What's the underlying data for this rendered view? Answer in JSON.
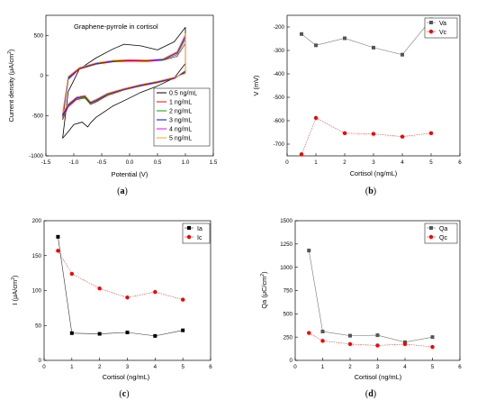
{
  "chart_data": [
    {
      "id": "a",
      "caption": "(a)",
      "type": "line",
      "title": "Graphene-pyrrole in cortisol",
      "xlabel": "Potential (V)",
      "ylabel": "Current density (μA/cm²)",
      "xlim": [
        -1.5,
        1.5
      ],
      "ylim": [
        -1000,
        750
      ],
      "xticks": [
        -1.5,
        -1.0,
        -0.5,
        0.0,
        0.5,
        1.0,
        1.5
      ],
      "xtick_labels": [
        "-1.5",
        "-1.0",
        "-0.5",
        "0.0",
        "0.5",
        "1.0",
        "1.5"
      ],
      "yticks": [
        -1000,
        -500,
        0,
        500
      ],
      "ytick_labels": [
        "-1000",
        "-500",
        "0",
        "500"
      ],
      "legend_position": "bottom-right",
      "series": [
        {
          "name": "0.5 ng/mL",
          "color": "#000000",
          "x": [
            -1.2,
            -1.1,
            -0.9,
            -0.6,
            -0.3,
            -0.1,
            0.2,
            0.5,
            0.8,
            1.0,
            1.0,
            0.8,
            0.5,
            0.2,
            0.0,
            -0.3,
            -0.6,
            -0.7,
            -0.75,
            -0.85,
            -1.0,
            -1.1,
            -1.2
          ],
          "y": [
            -780,
            -200,
            80,
            220,
            330,
            390,
            370,
            320,
            420,
            600,
            150,
            -30,
            -130,
            -210,
            -280,
            -380,
            -520,
            -590,
            -640,
            -580,
            -610,
            -700,
            -780
          ]
        },
        {
          "name": "1 ng/mL",
          "color": "#ff0000",
          "x": [
            -1.2,
            -1.1,
            -0.9,
            -0.6,
            -0.3,
            0.0,
            0.3,
            0.6,
            0.85,
            1.0,
            1.0,
            0.8,
            0.5,
            0.2,
            -0.1,
            -0.4,
            -0.6,
            -0.7,
            -0.8,
            -0.95,
            -1.1,
            -1.2
          ],
          "y": [
            -550,
            -50,
            80,
            140,
            170,
            180,
            175,
            190,
            240,
            400,
            60,
            -40,
            -90,
            -130,
            -180,
            -250,
            -330,
            -360,
            -280,
            -300,
            -390,
            -550
          ]
        },
        {
          "name": "2 ng/mL",
          "color": "#00aa00",
          "x": [
            -1.2,
            -1.1,
            -0.9,
            -0.6,
            -0.3,
            0.0,
            0.3,
            0.6,
            0.85,
            1.0,
            1.0,
            0.8,
            0.5,
            0.2,
            -0.1,
            -0.4,
            -0.6,
            -0.7,
            -0.8,
            -0.95,
            -1.1,
            -1.2
          ],
          "y": [
            -520,
            -40,
            85,
            145,
            175,
            185,
            180,
            195,
            260,
            450,
            50,
            -35,
            -85,
            -125,
            -175,
            -240,
            -320,
            -350,
            -270,
            -290,
            -380,
            -520
          ]
        },
        {
          "name": "3 ng/mL",
          "color": "#0000ff",
          "x": [
            -1.2,
            -1.1,
            -0.9,
            -0.6,
            -0.3,
            0.0,
            0.3,
            0.6,
            0.85,
            1.0,
            1.0,
            0.8,
            0.5,
            0.2,
            -0.1,
            -0.4,
            -0.6,
            -0.7,
            -0.8,
            -0.95,
            -1.1,
            -1.2
          ],
          "y": [
            -500,
            -30,
            90,
            150,
            180,
            190,
            185,
            200,
            280,
            480,
            40,
            -30,
            -80,
            -120,
            -170,
            -230,
            -310,
            -340,
            -260,
            -280,
            -370,
            -500
          ]
        },
        {
          "name": "4 ng/mL",
          "color": "#ff00ff",
          "x": [
            -1.2,
            -1.1,
            -0.9,
            -0.6,
            -0.3,
            0.0,
            0.3,
            0.6,
            0.85,
            1.0,
            1.0,
            0.8,
            0.5,
            0.2,
            -0.1,
            -0.4,
            -0.6,
            -0.7,
            -0.8,
            -0.95,
            -1.1,
            -1.2
          ],
          "y": [
            -480,
            -20,
            95,
            155,
            185,
            195,
            190,
            205,
            290,
            500,
            30,
            -25,
            -75,
            -115,
            -165,
            -225,
            -300,
            -330,
            -250,
            -270,
            -360,
            -480
          ]
        },
        {
          "name": "5 ng/mL",
          "color": "#f5a623",
          "x": [
            -1.2,
            -1.1,
            -0.9,
            -0.6,
            -0.3,
            0.0,
            0.3,
            0.6,
            0.85,
            1.0,
            1.0,
            0.8,
            0.5,
            0.2,
            -0.1,
            -0.4,
            -0.6,
            -0.7,
            -0.8,
            -0.95,
            -1.1,
            -1.2
          ],
          "y": [
            -460,
            -10,
            100,
            160,
            190,
            200,
            195,
            210,
            300,
            520,
            25,
            -20,
            -70,
            -110,
            -160,
            -220,
            -295,
            -325,
            -245,
            -265,
            -350,
            -460
          ]
        }
      ]
    },
    {
      "id": "b",
      "caption": "(b)",
      "type": "line",
      "xlabel": "Cortisol (ng/mL)",
      "ylabel": "V (mV)",
      "xlim": [
        0,
        6
      ],
      "ylim": [
        -750,
        -150
      ],
      "xticks": [
        0,
        1,
        2,
        3,
        4,
        5,
        6
      ],
      "xtick_labels": [
        "0",
        "1",
        "2",
        "3",
        "4",
        "5",
        "6"
      ],
      "yticks": [
        -700,
        -600,
        -500,
        -400,
        -300,
        -200
      ],
      "ytick_labels": [
        "-700",
        "-600",
        "-500",
        "-400",
        "-300",
        "-200"
      ],
      "legend_position": "top-right",
      "series": [
        {
          "name": "Va",
          "color": "#555555",
          "marker": "square",
          "x": [
            0.5,
            1,
            2,
            3,
            4,
            5
          ],
          "y": [
            -230,
            -278,
            -248,
            -288,
            -318,
            -168
          ]
        },
        {
          "name": "Vc",
          "color": "#ff0000",
          "marker": "circle",
          "x": [
            0.5,
            1,
            2,
            3,
            4,
            5
          ],
          "y": [
            -743,
            -588,
            -653,
            -656,
            -668,
            -653
          ]
        }
      ]
    },
    {
      "id": "c",
      "caption": "(c)",
      "type": "line",
      "xlabel": "Cortisol (ng/mL)",
      "ylabel": "I (μA/cm²)",
      "xlim": [
        0,
        6
      ],
      "ylim": [
        0,
        200
      ],
      "xticks": [
        0,
        1,
        2,
        3,
        4,
        5,
        6
      ],
      "xtick_labels": [
        "0",
        "1",
        "2",
        "3",
        "4",
        "5",
        "6"
      ],
      "yticks": [
        0,
        50,
        100,
        150,
        200
      ],
      "ytick_labels": [
        "0",
        "50",
        "100",
        "150",
        "200"
      ],
      "legend_position": "top-right",
      "series": [
        {
          "name": "Ia",
          "color": "#000000",
          "marker": "square",
          "x": [
            0.5,
            1,
            2,
            3,
            4,
            5
          ],
          "y": [
            177,
            39,
            38,
            40,
            35,
            43
          ]
        },
        {
          "name": "Ic",
          "color": "#ff0000",
          "marker": "circle",
          "x": [
            0.5,
            1,
            2,
            3,
            4,
            5
          ],
          "y": [
            157,
            124,
            103,
            90,
            98,
            87
          ]
        }
      ]
    },
    {
      "id": "d",
      "caption": "(d)",
      "type": "line",
      "xlabel": "Cortisol (ng/mL)",
      "ylabel": "Qa (μC/cm²)",
      "xlim": [
        0,
        6
      ],
      "ylim": [
        0,
        1500
      ],
      "xticks": [
        0,
        1,
        2,
        3,
        4,
        5,
        6
      ],
      "xtick_labels": [
        "0",
        "1",
        "2",
        "3",
        "4",
        "5",
        "6"
      ],
      "yticks": [
        0,
        250,
        500,
        750,
        1000,
        1250,
        1500
      ],
      "ytick_labels": [
        "0",
        "250",
        "500",
        "750",
        "1000",
        "1250",
        "1500"
      ],
      "legend_position": "top-right",
      "series": [
        {
          "name": "Qa",
          "color": "#555555",
          "marker": "square",
          "x": [
            0.5,
            1,
            2,
            3,
            4,
            5
          ],
          "y": [
            1180,
            310,
            265,
            270,
            195,
            250
          ]
        },
        {
          "name": "Qc",
          "color": "#ff0000",
          "marker": "circle",
          "x": [
            0.5,
            1,
            2,
            3,
            4,
            5
          ],
          "y": [
            295,
            210,
            175,
            160,
            175,
            145
          ]
        }
      ]
    }
  ]
}
